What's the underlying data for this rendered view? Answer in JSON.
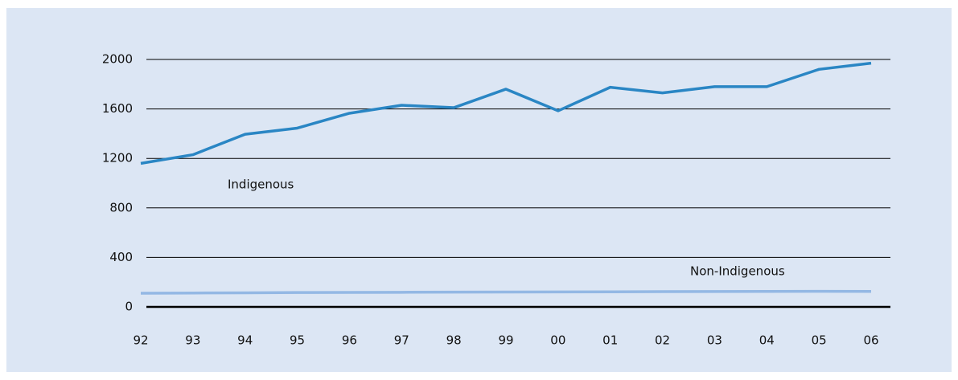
{
  "chart_data": {
    "type": "line",
    "categories": [
      "92",
      "93",
      "94",
      "95",
      "96",
      "97",
      "98",
      "99",
      "00",
      "01",
      "02",
      "03",
      "04",
      "05",
      "06"
    ],
    "series": [
      {
        "name": "Indigenous",
        "color": "#2a86c4",
        "values": [
          1160,
          1230,
          1395,
          1445,
          1565,
          1630,
          1610,
          1760,
          1585,
          1775,
          1730,
          1780,
          1780,
          1920,
          1970
        ]
      },
      {
        "name": "Non-Indigenous",
        "color": "#94b8e4",
        "values": [
          110,
          112,
          114,
          116,
          117,
          118,
          119,
          120,
          121,
          122,
          123,
          124,
          125,
          126,
          125
        ]
      }
    ],
    "ylim": [
      0,
      2000
    ],
    "yticks": [
      0,
      400,
      800,
      1200,
      1600,
      2000
    ],
    "grid": true
  }
}
